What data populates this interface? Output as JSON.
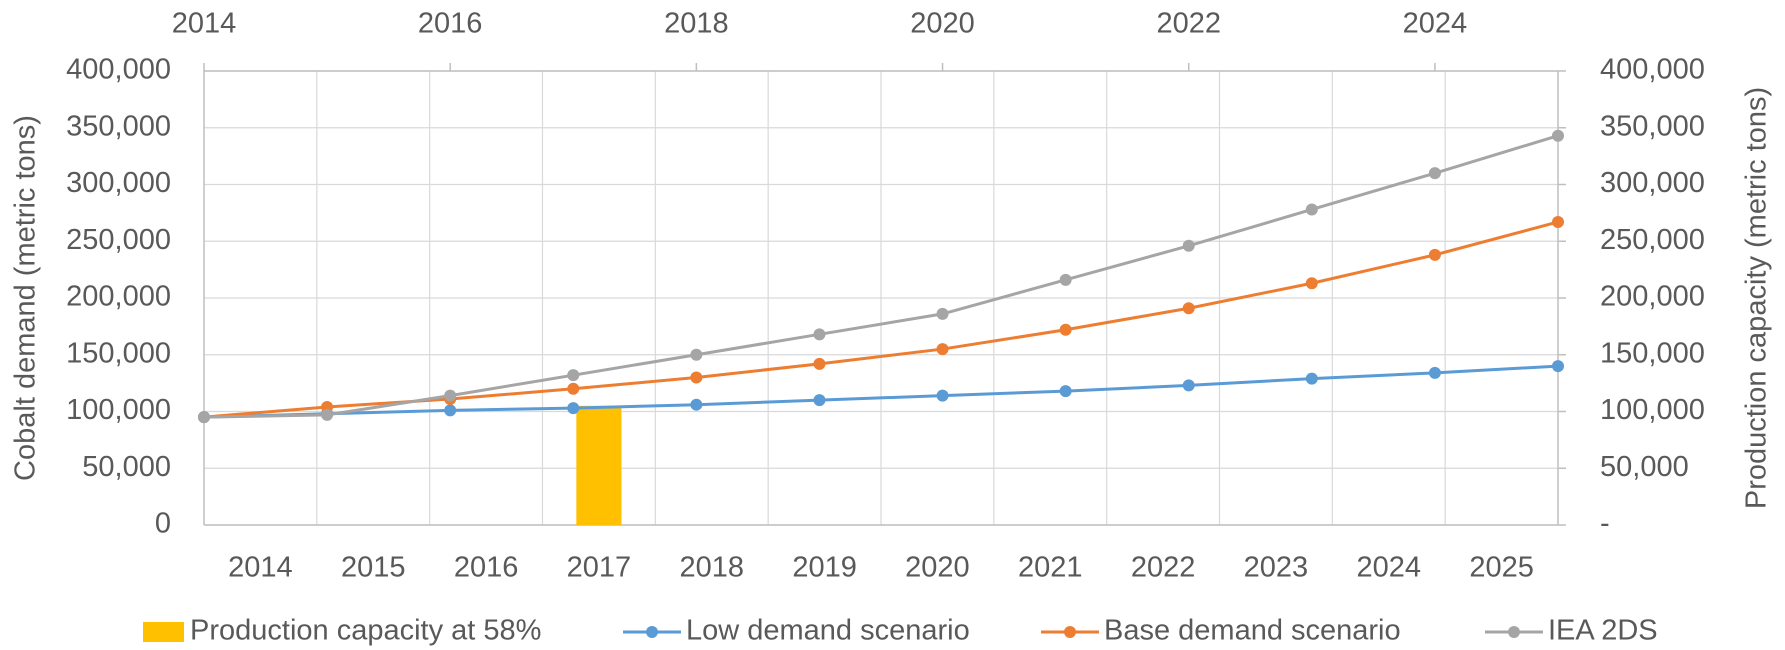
{
  "chart_data": {
    "type": "combo",
    "y_label": "Cobalt demand (metric tons)",
    "y2_label": "Production capacity (metric tons)",
    "categories": [
      "2014",
      "2015",
      "2016",
      "2017",
      "2018",
      "2019",
      "2020",
      "2021",
      "2022",
      "2023",
      "2024",
      "2025"
    ],
    "x": [
      2014,
      2015,
      2016,
      2017,
      2018,
      2019,
      2020,
      2021,
      2022,
      2023,
      2024,
      2025
    ],
    "xlim": [
      2014,
      2025
    ],
    "xticks": [
      2014,
      2016,
      2018,
      2020,
      2022,
      2024
    ],
    "ylim": [
      0,
      400000
    ],
    "yticks": [
      0,
      {
        "value": 50000,
        "label": "50,000"
      },
      {
        "value": 100000,
        "label": "100,000"
      },
      {
        "value": 150000,
        "label": "150,000"
      },
      {
        "value": 200000,
        "label": "200,000"
      },
      {
        "value": 250000,
        "label": "250,000"
      },
      {
        "value": 300000,
        "label": "300,000"
      },
      {
        "value": 350000,
        "label": "350,000"
      },
      {
        "value": 400000,
        "label": "400,000"
      }
    ],
    "y2lim": [
      0,
      400000
    ],
    "y2ticks": [
      {
        "value": 0,
        "label": "-"
      },
      {
        "value": 50000,
        "label": "50,000"
      },
      {
        "value": 100000,
        "label": "100,000"
      },
      {
        "value": 150000,
        "label": "150,000"
      },
      {
        "value": 200000,
        "label": "200,000"
      },
      {
        "value": 250000,
        "label": "250,000"
      },
      {
        "value": 300000,
        "label": "300,000"
      },
      {
        "value": 350000,
        "label": "350,000"
      },
      {
        "value": 400000,
        "label": "400,000"
      }
    ],
    "grid": true,
    "series": [
      {
        "name": "Production capacity at 58%",
        "type": "bar",
        "axis": "y2",
        "color": "#ffc000",
        "values": [
          null,
          null,
          null,
          105000,
          null,
          null,
          null,
          null,
          null,
          null,
          null,
          null
        ]
      },
      {
        "name": "Low demand scenario",
        "type": "line",
        "color": "#5b9bd5",
        "values": [
          95000,
          98000,
          101000,
          103000,
          106000,
          110000,
          114000,
          118000,
          123000,
          129000,
          134000,
          140000
        ]
      },
      {
        "name": "Base demand scenario",
        "type": "line",
        "color": "#ed7d31",
        "values": [
          95000,
          104000,
          111000,
          120000,
          130000,
          142000,
          155000,
          172000,
          191000,
          213000,
          238000,
          267000
        ]
      },
      {
        "name": "IEA 2DS",
        "type": "line",
        "color": "#a5a5a5",
        "values": [
          95000,
          97000,
          114000,
          132000,
          150000,
          168000,
          186000,
          216000,
          246000,
          278000,
          310000,
          343000
        ]
      }
    ]
  }
}
